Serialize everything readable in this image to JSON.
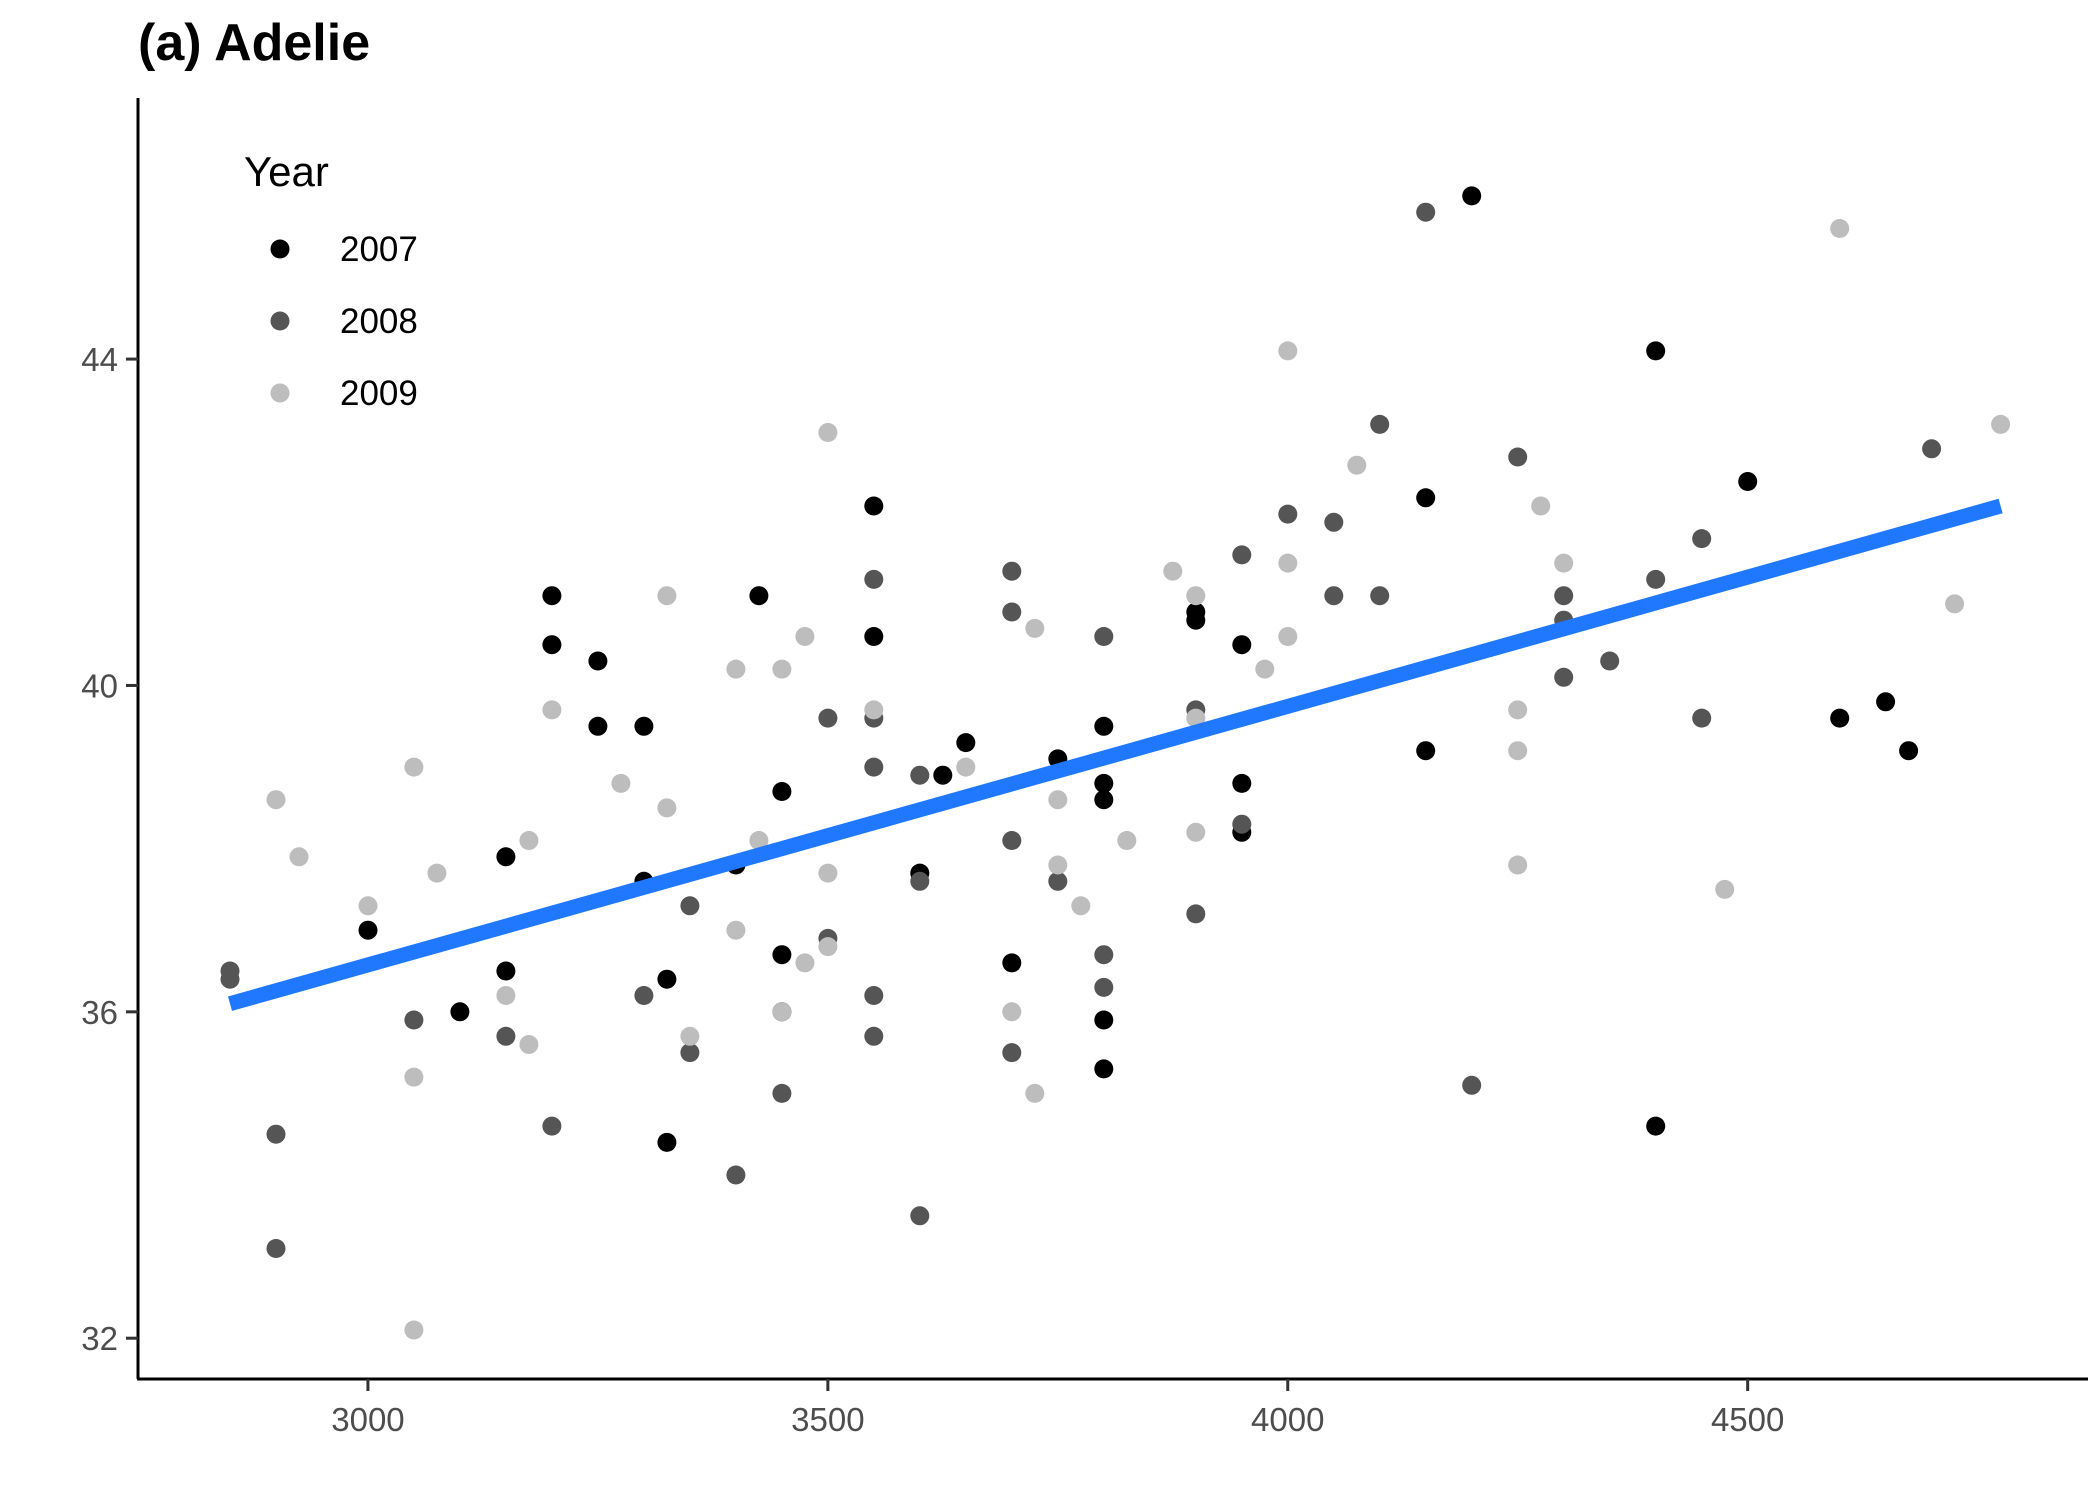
{
  "chart_data": {
    "type": "scatter",
    "title": "(a) Adelie",
    "xlabel": "",
    "ylabel": "",
    "xlim": [
      2750,
      4870
    ],
    "ylim": [
      31.5,
      47.2
    ],
    "x_ticks": [
      3000,
      3500,
      4000,
      4500
    ],
    "y_ticks": [
      32,
      36,
      40,
      44
    ],
    "grid": false,
    "legend": {
      "title": "Year",
      "position": "top-left"
    },
    "series": [
      {
        "name": "2007",
        "color": "#000000",
        "points": [
          [
            3000,
            37.0
          ],
          [
            3100,
            36.0
          ],
          [
            3150,
            37.9
          ],
          [
            3150,
            36.5
          ],
          [
            3200,
            41.1
          ],
          [
            3200,
            40.5
          ],
          [
            3250,
            40.3
          ],
          [
            3250,
            39.5
          ],
          [
            3300,
            39.5
          ],
          [
            3300,
            37.6
          ],
          [
            3325,
            36.4
          ],
          [
            3325,
            34.4
          ],
          [
            3400,
            37.8
          ],
          [
            3425,
            41.1
          ],
          [
            3450,
            38.7
          ],
          [
            3450,
            36.7
          ],
          [
            3450,
            36.0
          ],
          [
            3550,
            42.2
          ],
          [
            3550,
            40.6
          ],
          [
            3600,
            37.7
          ],
          [
            3625,
            38.9
          ],
          [
            3650,
            39.3
          ],
          [
            3700,
            36.6
          ],
          [
            3750,
            39.1
          ],
          [
            3800,
            39.5
          ],
          [
            3800,
            38.8
          ],
          [
            3800,
            38.6
          ],
          [
            3800,
            35.9
          ],
          [
            3800,
            35.3
          ],
          [
            3900,
            40.9
          ],
          [
            3900,
            40.8
          ],
          [
            3950,
            40.5
          ],
          [
            3950,
            38.8
          ],
          [
            3950,
            38.2
          ],
          [
            4150,
            42.3
          ],
          [
            4150,
            39.2
          ],
          [
            4200,
            46.0
          ],
          [
            4400,
            44.1
          ],
          [
            4400,
            34.6
          ],
          [
            4500,
            42.5
          ],
          [
            4600,
            39.6
          ],
          [
            4650,
            39.8
          ],
          [
            4675,
            39.2
          ]
        ]
      },
      {
        "name": "2008",
        "color": "#555555",
        "points": [
          [
            2850,
            36.5
          ],
          [
            2850,
            36.4
          ],
          [
            2900,
            34.5
          ],
          [
            2900,
            33.1
          ],
          [
            3050,
            35.9
          ],
          [
            3150,
            35.7
          ],
          [
            3200,
            34.6
          ],
          [
            3300,
            36.2
          ],
          [
            3350,
            37.3
          ],
          [
            3350,
            35.5
          ],
          [
            3400,
            34.0
          ],
          [
            3450,
            35.0
          ],
          [
            3500,
            39.6
          ],
          [
            3500,
            36.9
          ],
          [
            3550,
            41.3
          ],
          [
            3550,
            39.6
          ],
          [
            3550,
            39.0
          ],
          [
            3550,
            36.2
          ],
          [
            3550,
            35.7
          ],
          [
            3600,
            38.9
          ],
          [
            3600,
            37.6
          ],
          [
            3600,
            33.5
          ],
          [
            3700,
            41.4
          ],
          [
            3700,
            40.9
          ],
          [
            3700,
            38.1
          ],
          [
            3700,
            35.5
          ],
          [
            3750,
            37.6
          ],
          [
            3800,
            40.6
          ],
          [
            3800,
            36.7
          ],
          [
            3800,
            36.3
          ],
          [
            3900,
            39.7
          ],
          [
            3900,
            37.2
          ],
          [
            3950,
            41.6
          ],
          [
            3950,
            38.3
          ],
          [
            4000,
            42.1
          ],
          [
            4050,
            42.0
          ],
          [
            4050,
            41.1
          ],
          [
            4100,
            43.2
          ],
          [
            4100,
            41.1
          ],
          [
            4150,
            45.8
          ],
          [
            4200,
            35.1
          ],
          [
            4250,
            42.8
          ],
          [
            4300,
            41.1
          ],
          [
            4300,
            40.8
          ],
          [
            4300,
            40.1
          ],
          [
            4350,
            40.3
          ],
          [
            4400,
            41.3
          ],
          [
            4450,
            41.8
          ],
          [
            4450,
            39.6
          ],
          [
            4700,
            42.9
          ]
        ]
      },
      {
        "name": "2009",
        "color": "#bdbdbd",
        "points": [
          [
            2900,
            38.6
          ],
          [
            2925,
            37.9
          ],
          [
            3000,
            37.3
          ],
          [
            3050,
            39.0
          ],
          [
            3050,
            35.2
          ],
          [
            3050,
            32.1
          ],
          [
            3075,
            37.7
          ],
          [
            3150,
            36.2
          ],
          [
            3175,
            38.1
          ],
          [
            3175,
            35.6
          ],
          [
            3200,
            39.7
          ],
          [
            3275,
            38.8
          ],
          [
            3325,
            41.1
          ],
          [
            3325,
            38.5
          ],
          [
            3350,
            35.7
          ],
          [
            3400,
            40.2
          ],
          [
            3400,
            37.0
          ],
          [
            3425,
            38.1
          ],
          [
            3450,
            40.2
          ],
          [
            3450,
            36.0
          ],
          [
            3475,
            40.6
          ],
          [
            3475,
            36.6
          ],
          [
            3500,
            43.1
          ],
          [
            3500,
            37.7
          ],
          [
            3500,
            36.8
          ],
          [
            3550,
            39.7
          ],
          [
            3650,
            39.0
          ],
          [
            3700,
            36.0
          ],
          [
            3725,
            40.7
          ],
          [
            3725,
            35.0
          ],
          [
            3750,
            38.6
          ],
          [
            3750,
            37.8
          ],
          [
            3775,
            37.3
          ],
          [
            3825,
            38.1
          ],
          [
            3875,
            41.4
          ],
          [
            3900,
            41.1
          ],
          [
            3900,
            39.6
          ],
          [
            3900,
            38.2
          ],
          [
            3975,
            40.2
          ],
          [
            4000,
            44.1
          ],
          [
            4000,
            41.5
          ],
          [
            4000,
            40.6
          ],
          [
            4075,
            42.7
          ],
          [
            4250,
            39.7
          ],
          [
            4250,
            39.2
          ],
          [
            4250,
            37.8
          ],
          [
            4275,
            42.2
          ],
          [
            4300,
            41.5
          ],
          [
            4475,
            37.5
          ],
          [
            4600,
            45.6
          ],
          [
            4725,
            41.0
          ],
          [
            4775,
            43.2
          ]
        ]
      }
    ],
    "trend_line": {
      "color": "#1f78ff",
      "x": [
        2850,
        4775
      ],
      "y": [
        36.1,
        42.2
      ]
    }
  }
}
